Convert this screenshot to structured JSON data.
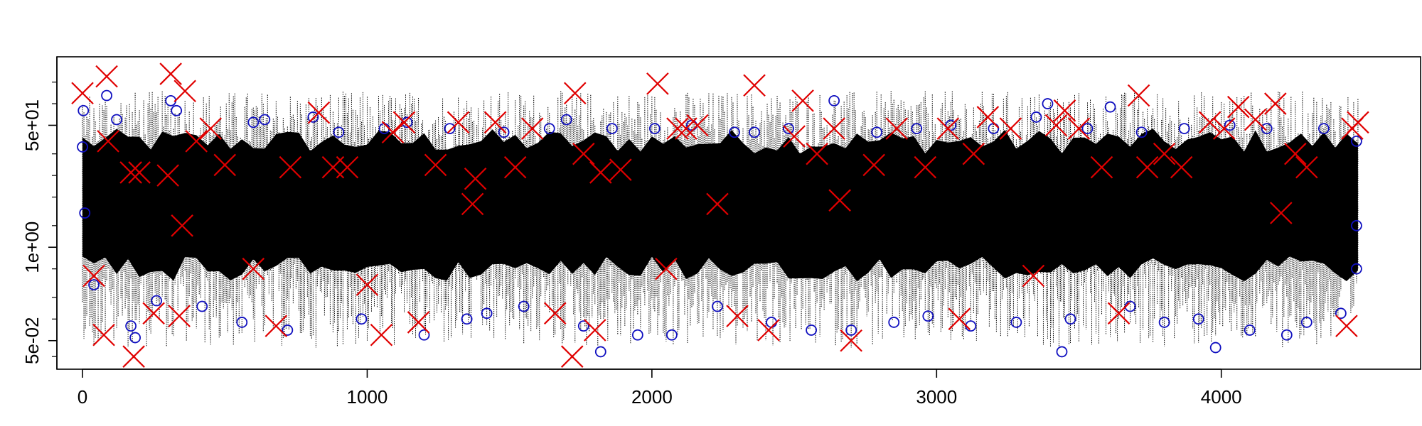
{
  "chart_data": {
    "type": "scatter",
    "title": "",
    "xlabel": "",
    "ylabel": "",
    "x_scale": "linear",
    "y_scale": "log",
    "xlim": [
      -90,
      4700
    ],
    "ylim": [
      0.02,
      450
    ],
    "x_ticks": [
      0,
      1000,
      2000,
      3000,
      4000
    ],
    "x_tick_labels": [
      "0",
      "1000",
      "2000",
      "3000",
      "4000"
    ],
    "y_ticks": [
      0.05,
      1,
      50
    ],
    "y_tick_labels": [
      "5e-02",
      "1e+00",
      "5e+01"
    ],
    "grid": false,
    "legend": "none",
    "colors": {
      "series": "#000000",
      "circles": "#1010c0",
      "crosses": "#e00000"
    },
    "series": [
      {
        "style": "dotted vertical lines",
        "x_range": [
          0,
          4480
        ],
        "typical_band": [
          0.5,
          30
        ]
      },
      {
        "marker": "circle",
        "points": [
          [
            0,
            25
          ],
          [
            3,
            80
          ],
          [
            8,
            3
          ],
          [
            40,
            0.3
          ],
          [
            85,
            130
          ],
          [
            120,
            60
          ],
          [
            170,
            0.08
          ],
          [
            185,
            0.055
          ],
          [
            260,
            0.18
          ],
          [
            310,
            110
          ],
          [
            330,
            80
          ],
          [
            420,
            0.15
          ],
          [
            560,
            0.09
          ],
          [
            600,
            55
          ],
          [
            640,
            60
          ],
          [
            720,
            0.07
          ],
          [
            810,
            65
          ],
          [
            900,
            40
          ],
          [
            980,
            0.1
          ],
          [
            1060,
            45
          ],
          [
            1140,
            55
          ],
          [
            1200,
            0.06
          ],
          [
            1290,
            45
          ],
          [
            1350,
            0.1
          ],
          [
            1420,
            0.12
          ],
          [
            1480,
            40
          ],
          [
            1550,
            0.15
          ],
          [
            1640,
            45
          ],
          [
            1700,
            60
          ],
          [
            1760,
            0.08
          ],
          [
            1820,
            0.035
          ],
          [
            1860,
            45
          ],
          [
            1950,
            0.06
          ],
          [
            2010,
            45
          ],
          [
            2070,
            0.06
          ],
          [
            2140,
            50
          ],
          [
            2230,
            0.15
          ],
          [
            2290,
            40
          ],
          [
            2360,
            40
          ],
          [
            2420,
            0.09
          ],
          [
            2480,
            45
          ],
          [
            2560,
            0.07
          ],
          [
            2640,
            110
          ],
          [
            2700,
            0.07
          ],
          [
            2790,
            40
          ],
          [
            2850,
            0.09
          ],
          [
            2930,
            45
          ],
          [
            2970,
            0.11
          ],
          [
            3050,
            50
          ],
          [
            3120,
            0.08
          ],
          [
            3200,
            45
          ],
          [
            3280,
            0.09
          ],
          [
            3350,
            65
          ],
          [
            3390,
            100
          ],
          [
            3440,
            0.035
          ],
          [
            3470,
            0.1
          ],
          [
            3530,
            45
          ],
          [
            3610,
            90
          ],
          [
            3680,
            0.15
          ],
          [
            3720,
            40
          ],
          [
            3800,
            0.09
          ],
          [
            3870,
            45
          ],
          [
            3920,
            0.1
          ],
          [
            3980,
            0.04
          ],
          [
            4030,
            50
          ],
          [
            4100,
            0.07
          ],
          [
            4160,
            45
          ],
          [
            4230,
            0.06
          ],
          [
            4300,
            0.09
          ],
          [
            4360,
            45
          ],
          [
            4420,
            0.12
          ],
          [
            4475,
            30
          ],
          [
            4475,
            2
          ],
          [
            4475,
            0.5
          ]
        ]
      },
      {
        "marker": "x",
        "points": [
          [
            0,
            140
          ],
          [
            40,
            0.4
          ],
          [
            75,
            0.06
          ],
          [
            85,
            240
          ],
          [
            90,
            30
          ],
          [
            170,
            11
          ],
          [
            180,
            0.03
          ],
          [
            200,
            11
          ],
          [
            250,
            0.12
          ],
          [
            300,
            10
          ],
          [
            310,
            260
          ],
          [
            340,
            0.11
          ],
          [
            350,
            2
          ],
          [
            360,
            150
          ],
          [
            400,
            30
          ],
          [
            450,
            45
          ],
          [
            500,
            14
          ],
          [
            600,
            0.5
          ],
          [
            680,
            0.08
          ],
          [
            730,
            13
          ],
          [
            830,
            75
          ],
          [
            880,
            13
          ],
          [
            930,
            13
          ],
          [
            1000,
            0.3
          ],
          [
            1050,
            0.06
          ],
          [
            1090,
            40
          ],
          [
            1130,
            55
          ],
          [
            1180,
            0.09
          ],
          [
            1240,
            14
          ],
          [
            1320,
            55
          ],
          [
            1380,
            9
          ],
          [
            1370,
            4
          ],
          [
            1450,
            55
          ],
          [
            1520,
            13
          ],
          [
            1580,
            45
          ],
          [
            1660,
            0.12
          ],
          [
            1720,
            0.03
          ],
          [
            1730,
            140
          ],
          [
            1760,
            20
          ],
          [
            1800,
            0.07
          ],
          [
            1820,
            11
          ],
          [
            1890,
            12
          ],
          [
            2020,
            190
          ],
          [
            2050,
            0.5
          ],
          [
            2090,
            45
          ],
          [
            2120,
            45
          ],
          [
            2160,
            50
          ],
          [
            2230,
            4
          ],
          [
            2300,
            0.11
          ],
          [
            2360,
            180
          ],
          [
            2410,
            0.07
          ],
          [
            2500,
            35
          ],
          [
            2530,
            110
          ],
          [
            2580,
            20
          ],
          [
            2640,
            45
          ],
          [
            2660,
            4.5
          ],
          [
            2700,
            0.05
          ],
          [
            2780,
            14
          ],
          [
            2860,
            45
          ],
          [
            2960,
            13
          ],
          [
            3040,
            45
          ],
          [
            3080,
            0.1
          ],
          [
            3130,
            20
          ],
          [
            3180,
            65
          ],
          [
            3260,
            45
          ],
          [
            3340,
            0.4
          ],
          [
            3420,
            50
          ],
          [
            3450,
            80
          ],
          [
            3500,
            45
          ],
          [
            3580,
            13
          ],
          [
            3640,
            0.12
          ],
          [
            3710,
            130
          ],
          [
            3740,
            13
          ],
          [
            3800,
            20
          ],
          [
            3860,
            13
          ],
          [
            3960,
            55
          ],
          [
            4010,
            45
          ],
          [
            4060,
            90
          ],
          [
            4120,
            60
          ],
          [
            4190,
            100
          ],
          [
            4210,
            3
          ],
          [
            4260,
            20
          ],
          [
            4300,
            13
          ],
          [
            4440,
            0.08
          ],
          [
            4460,
            45
          ],
          [
            4480,
            55
          ]
        ]
      }
    ]
  }
}
